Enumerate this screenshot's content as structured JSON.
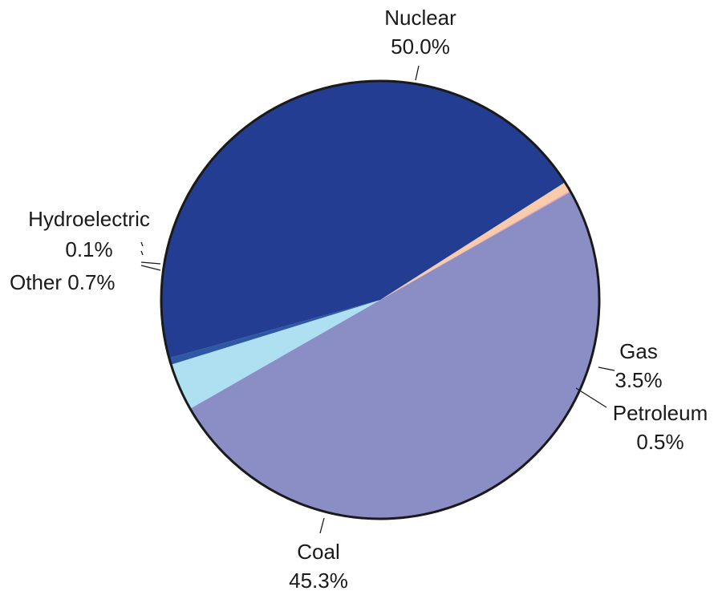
{
  "chart_data": {
    "type": "pie",
    "title": "",
    "slices": [
      {
        "name": "Nuclear",
        "value": 50.0,
        "label": "50.0%",
        "color": "#8a8ec4"
      },
      {
        "name": "Gas",
        "value": 3.5,
        "label": "3.5%",
        "color": "#aee0f2"
      },
      {
        "name": "Petroleum",
        "value": 0.5,
        "label": "0.5%",
        "color": "#2e57a6"
      },
      {
        "name": "Coal",
        "value": 45.3,
        "label": "45.3%",
        "color": "#223d91"
      },
      {
        "name": "Other",
        "value": 0.7,
        "label": "0.7%",
        "color": "#f8ccaa"
      },
      {
        "name": "Hydroelectric",
        "value": 0.1,
        "label": "0.1%",
        "color": "#e8a9b4"
      }
    ]
  }
}
